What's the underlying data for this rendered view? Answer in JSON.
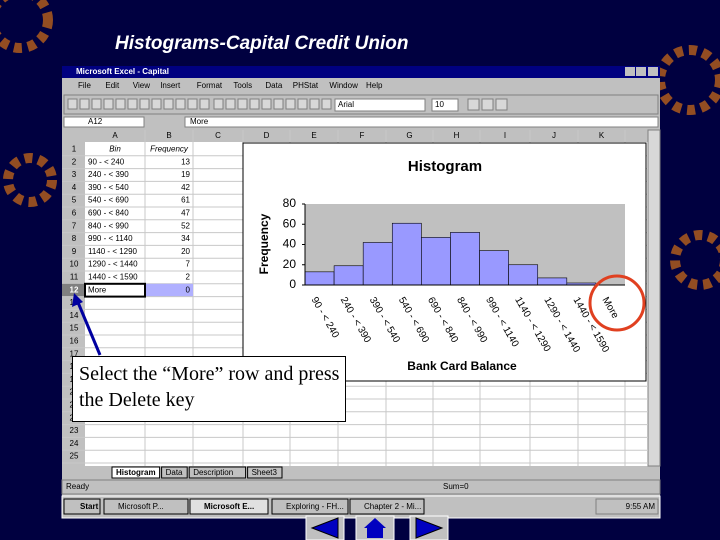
{
  "slide": {
    "title": "Histograms-Capital Credit Union"
  },
  "window": {
    "title": "Microsoft Excel - Capital",
    "menu": [
      "File",
      "Edit",
      "View",
      "Insert",
      "Format",
      "Tools",
      "Data",
      "PHStat",
      "Window",
      "Help"
    ],
    "font": "Arial",
    "font_size": 10,
    "name_box": "A12",
    "formula": "More",
    "columns": [
      "A",
      "B",
      "C",
      "D",
      "E",
      "F",
      "G",
      "H",
      "I",
      "J",
      "K"
    ],
    "rows": [
      1,
      2,
      3,
      4,
      5,
      6,
      7,
      8,
      9,
      10,
      11,
      12,
      13,
      14,
      15,
      16,
      17,
      18,
      19,
      20,
      21,
      22,
      23,
      24,
      25
    ],
    "headers": [
      "Bin",
      "Frequency"
    ],
    "tabs": [
      "Histogram",
      "Data",
      "Description",
      "Sheet3"
    ],
    "status": "Ready",
    "sum": "Sum=0"
  },
  "taskbar": {
    "start": "Start",
    "tasks": [
      "Microsoft P...",
      "Microsoft E...",
      "Exploring - FH...",
      "Chapter 2 - Mi..."
    ],
    "clock": "9:55 AM"
  },
  "callout": "Select the “More” row and press the Delete key",
  "chart_data": {
    "type": "bar",
    "title": "Histogram",
    "x_label": "Bank Card Balance",
    "y_label": "Frequency",
    "categories": [
      "90 - < 240",
      "240 - < 390",
      "390 - < 540",
      "540 - < 690",
      "690 - < 840",
      "840 - < 990",
      "990 - < 1140",
      "1140 - < 1290",
      "1290 - < 1440",
      "1440 - < 1590",
      "More"
    ],
    "values": [
      13,
      19,
      42,
      61,
      47,
      52,
      34,
      20,
      7,
      2,
      0
    ],
    "color": "#9999ff",
    "ylim": [
      0,
      80
    ],
    "yticks": [
      0,
      20,
      40,
      60,
      80
    ],
    "grid": false
  }
}
